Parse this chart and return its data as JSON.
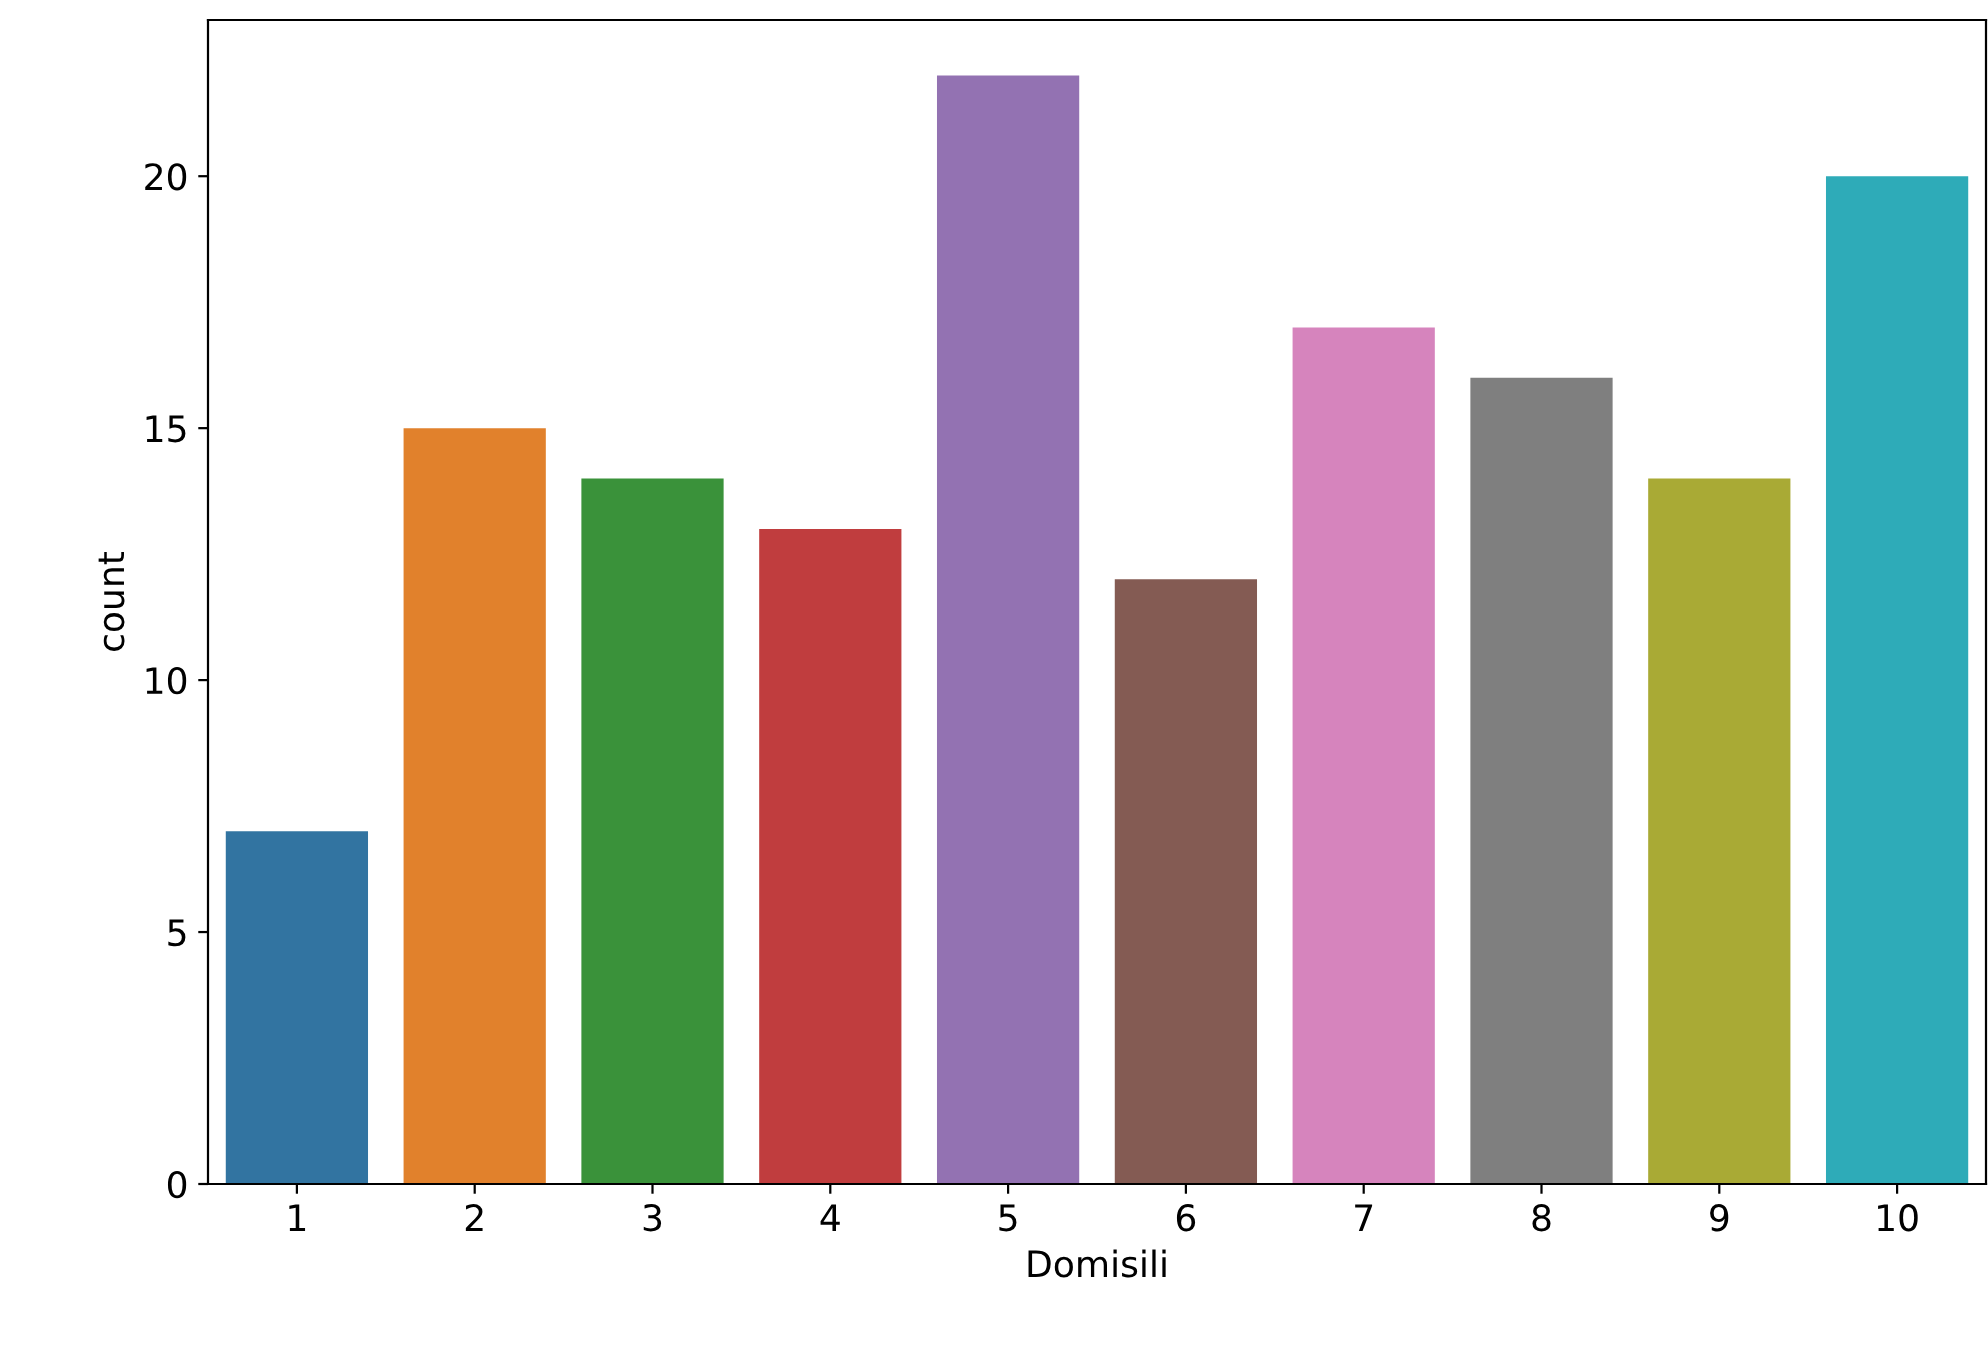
{
  "chart_data": {
    "type": "bar",
    "xlabel": "Domisili",
    "ylabel": "count",
    "categories": [
      "1",
      "2",
      "3",
      "4",
      "5",
      "6",
      "7",
      "8",
      "9",
      "10"
    ],
    "values": [
      7,
      15,
      14,
      13,
      22,
      12,
      17,
      16,
      14,
      20
    ],
    "colors": [
      "#3274a1",
      "#e1812c",
      "#3a923a",
      "#c03d3e",
      "#9372b2",
      "#845b53",
      "#d684bd",
      "#7f7f7f",
      "#a9aa35",
      "#2eabb8"
    ],
    "ylim": [
      0,
      23.1
    ],
    "yticks": [
      0,
      5,
      10,
      15,
      20
    ],
    "grid": false
  }
}
